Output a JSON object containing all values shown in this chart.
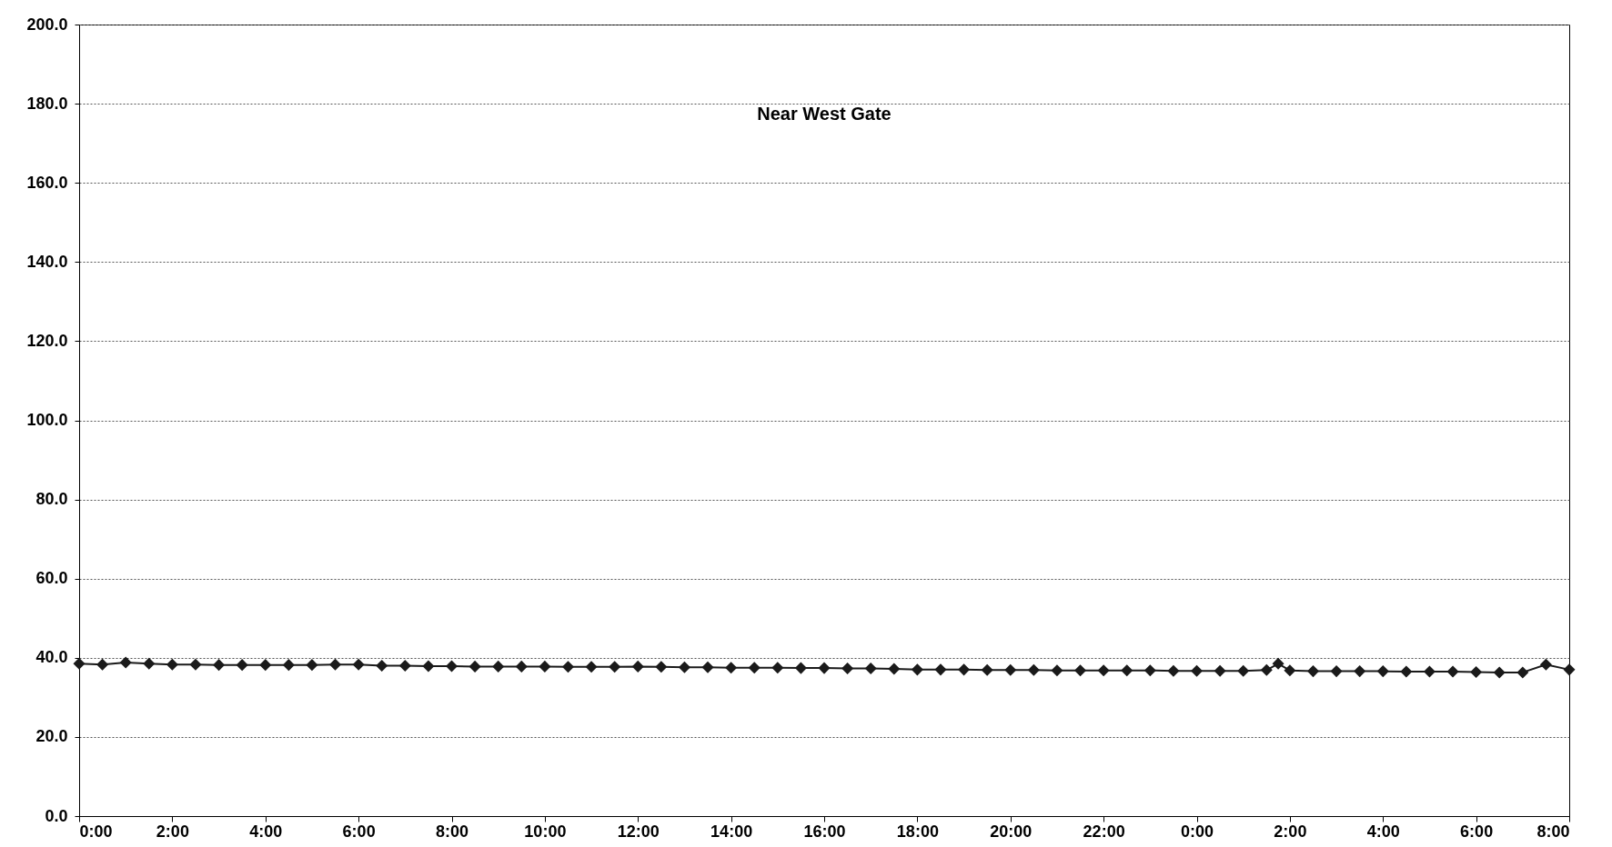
{
  "chart_data": {
    "type": "line",
    "title": "Near West Gate",
    "x": [
      "--01-01T00:00",
      "--01-01T00:30",
      "--01-01T01:00",
      "--01-01T01:30",
      "--01-01T02:00",
      "--01-01T02:30",
      "--01-01T03:00",
      "--01-01T03:30",
      "--01-01T04:00",
      "--01-01T04:30",
      "--01-01T05:00",
      "--01-01T05:30",
      "--01-01T06:00",
      "--01-01T06:30",
      "--01-01T07:00",
      "--01-01T07:30",
      "--01-01T08:00",
      "--01-01T08:30",
      "--01-01T09:00",
      "--01-01T09:30",
      "--01-01T10:00",
      "--01-01T10:30",
      "--01-01T11:00",
      "--01-01T11:30",
      "--01-01T12:00",
      "--01-01T12:30",
      "--01-01T13:00",
      "--01-01T13:30",
      "--01-01T14:00",
      "--01-01T14:30",
      "--01-01T15:00",
      "--01-01T15:30",
      "--01-01T16:00",
      "--01-01T16:30",
      "--01-01T17:00",
      "--01-01T17:30",
      "--01-01T18:00",
      "--01-01T18:30",
      "--01-01T19:00",
      "--01-01T19:30",
      "--01-01T20:00",
      "--01-01T20:30",
      "--01-01T21:00",
      "--01-01T21:30",
      "--01-01T22:00",
      "--01-01T22:30",
      "--01-01T23:00",
      "--01-01T23:30",
      "--01-02T00:00",
      "--01-02T00:30",
      "--01-02T01:00",
      "--01-02T01:30",
      "--01-02T01:45",
      "--01-02T02:00",
      "--01-02T02:30",
      "--01-02T03:00",
      "--01-02T03:30",
      "--01-02T04:00",
      "--01-02T04:30",
      "--01-02T05:00",
      "--01-02T05:30",
      "--01-02T06:00",
      "--01-02T06:30",
      "--01-02T07:00",
      "--01-02T07:30",
      "--01-02T08:00"
    ],
    "series": [
      {
        "color": "#1a1a1a",
        "values": [
          38.5,
          38.3,
          38.8,
          38.5,
          38.3,
          38.3,
          38.2,
          38.2,
          38.2,
          38.2,
          38.2,
          38.3,
          38.3,
          38.0,
          38.0,
          37.9,
          37.9,
          37.8,
          37.8,
          37.8,
          37.8,
          37.7,
          37.7,
          37.7,
          37.8,
          37.7,
          37.6,
          37.6,
          37.5,
          37.5,
          37.5,
          37.4,
          37.4,
          37.3,
          37.3,
          37.2,
          37.0,
          37.0,
          37.0,
          36.9,
          36.9,
          36.9,
          36.8,
          36.8,
          36.8,
          36.8,
          36.8,
          36.7,
          36.7,
          36.7,
          36.7,
          36.9,
          38.5,
          36.8,
          36.6,
          36.6,
          36.6,
          36.6,
          36.5,
          36.5,
          36.5,
          36.4,
          36.3,
          36.3,
          38.3,
          37.0
        ]
      }
    ],
    "xlim": [
      "--01-01T00:00",
      "--01-02T08:00"
    ],
    "xticks": [
      {
        "value": "--01-01T00:00",
        "label": "0:00"
      },
      {
        "value": "--01-01T02:00",
        "label": "2:00"
      },
      {
        "value": "--01-01T04:00",
        "label": "4:00"
      },
      {
        "value": "--01-01T06:00",
        "label": "6:00"
      },
      {
        "value": "--01-01T08:00",
        "label": "8:00"
      },
      {
        "value": "--01-01T10:00",
        "label": "10:00"
      },
      {
        "value": "--01-01T12:00",
        "label": "12:00"
      },
      {
        "value": "--01-01T14:00",
        "label": "14:00"
      },
      {
        "value": "--01-01T16:00",
        "label": "16:00"
      },
      {
        "value": "--01-01T18:00",
        "label": "18:00"
      },
      {
        "value": "--01-01T20:00",
        "label": "20:00"
      },
      {
        "value": "--01-01T22:00",
        "label": "22:00"
      },
      {
        "value": "--01-02T00:00",
        "label": "0:00"
      },
      {
        "value": "--01-02T02:00",
        "label": "2:00"
      },
      {
        "value": "--01-02T04:00",
        "label": "4:00"
      },
      {
        "value": "--01-02T06:00",
        "label": "6:00"
      },
      {
        "value": "--01-02T08:00",
        "label": "8:00"
      }
    ],
    "ylim": [
      0,
      200
    ],
    "yticks": [
      {
        "value": 0,
        "label": "0.0"
      },
      {
        "value": 20,
        "label": "20.0"
      },
      {
        "value": 40,
        "label": "40.0"
      },
      {
        "value": 60,
        "label": "60.0"
      },
      {
        "value": 80,
        "label": "80.0"
      },
      {
        "value": 100,
        "label": "100.0"
      },
      {
        "value": 120,
        "label": "120.0"
      },
      {
        "value": 140,
        "label": "140.0"
      },
      {
        "value": 160,
        "label": "160.0"
      },
      {
        "value": 180,
        "label": "180.0"
      },
      {
        "value": 200,
        "label": "200.0"
      }
    ],
    "grid": "y",
    "marker": "diamond",
    "line_style": "solid",
    "legend": false
  }
}
